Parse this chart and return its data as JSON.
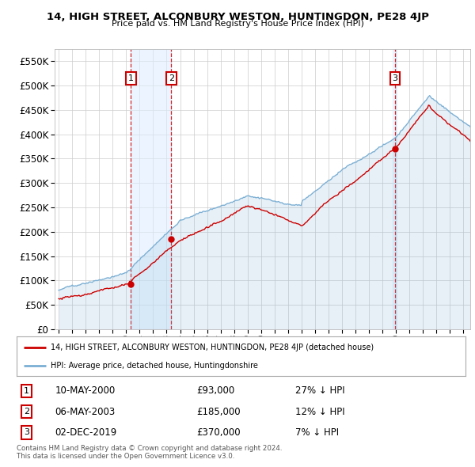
{
  "title": "14, HIGH STREET, ALCONBURY WESTON, HUNTINGDON, PE28 4JP",
  "subtitle": "Price paid vs. HM Land Registry's House Price Index (HPI)",
  "hpi_color": "#7bafd4",
  "price_color": "#cc0000",
  "background_color": "#ffffff",
  "plot_bg_color": "#ffffff",
  "grid_color": "#cccccc",
  "ylim": [
    0,
    575000
  ],
  "yticks": [
    0,
    50000,
    100000,
    150000,
    200000,
    250000,
    300000,
    350000,
    400000,
    450000,
    500000,
    550000
  ],
  "xlim_start": 1994.7,
  "xlim_end": 2025.5,
  "sale_dates": [
    2000.36,
    2003.35,
    2019.92
  ],
  "sale_prices": [
    93000,
    185000,
    370000
  ],
  "sale_labels": [
    "1",
    "2",
    "3"
  ],
  "sale_info": [
    {
      "num": "1",
      "date": "10-MAY-2000",
      "price": "£93,000",
      "hpi": "27% ↓ HPI"
    },
    {
      "num": "2",
      "date": "06-MAY-2003",
      "price": "£185,000",
      "hpi": "12% ↓ HPI"
    },
    {
      "num": "3",
      "date": "02-DEC-2019",
      "price": "£370,000",
      "hpi": "7% ↓ HPI"
    }
  ],
  "legend_property_label": "14, HIGH STREET, ALCONBURY WESTON, HUNTINGDON, PE28 4JP (detached house)",
  "legend_hpi_label": "HPI: Average price, detached house, Huntingdonshire",
  "footnote": "Contains HM Land Registry data © Crown copyright and database right 2024.\nThis data is licensed under the Open Government Licence v3.0.",
  "hpi_shade_color": "#ddeeff"
}
